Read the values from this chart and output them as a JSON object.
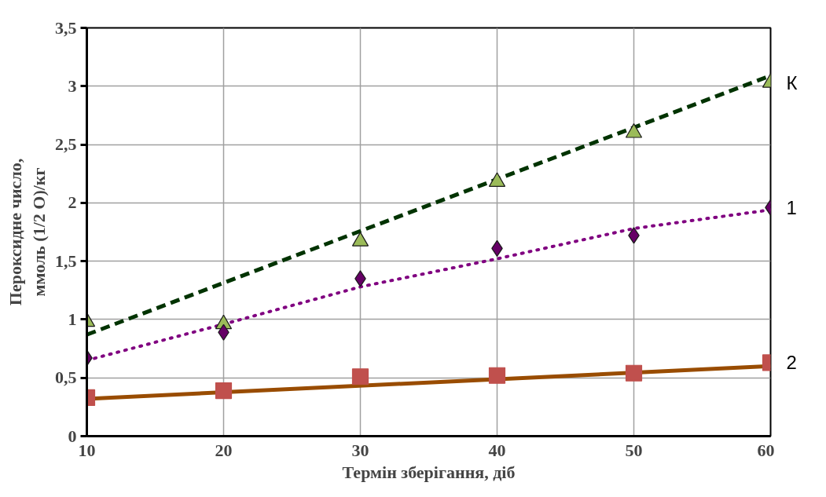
{
  "chart_data": {
    "type": "scatter",
    "xlabel": "Термін зберігання, діб",
    "ylabel": "Пероксидне число,\nммоль (1/2 О)/кг",
    "x": [
      10,
      20,
      30,
      40,
      50,
      60
    ],
    "xlim": [
      10,
      60
    ],
    "xticks": [
      10,
      20,
      30,
      40,
      50,
      60
    ],
    "ylim": [
      0,
      3.5
    ],
    "yticks": [
      0,
      {
        "value": 0.5,
        "label": "0,5"
      },
      1,
      {
        "value": 1.5,
        "label": "1,5"
      },
      2,
      {
        "value": 2.5,
        "label": "2,5"
      },
      3,
      {
        "value": 3.5,
        "label": "3,5"
      }
    ],
    "grid": true,
    "legend": false,
    "series": [
      {
        "name": "К",
        "marker": "triangle",
        "color": "#9bbb59",
        "values": [
          0.98,
          0.96,
          1.67,
          2.18,
          2.6,
          3.03
        ]
      },
      {
        "name": "1",
        "marker": "diamond",
        "color": "#660066",
        "values": [
          0.67,
          0.89,
          1.35,
          1.61,
          1.72,
          1.96
        ]
      },
      {
        "name": "2",
        "marker": "square",
        "color": "#c0504d",
        "values": [
          0.33,
          0.39,
          0.51,
          0.52,
          0.54,
          0.63
        ]
      },
      {
        "type": "line",
        "line_style": "dashed",
        "color": "#003300",
        "x": [
          10,
          60
        ],
        "values": [
          0.87,
          3.09
        ]
      },
      {
        "type": "line",
        "line_style": "dotted",
        "color": "#800080",
        "x": [
          10,
          20,
          30,
          40,
          50,
          60
        ],
        "values": [
          0.65,
          0.96,
          1.28,
          1.52,
          1.78,
          1.94
        ]
      },
      {
        "type": "line",
        "line_style": "solid",
        "color": "#994c00",
        "x": [
          10,
          60
        ],
        "values": [
          0.32,
          0.6
        ]
      }
    ]
  }
}
